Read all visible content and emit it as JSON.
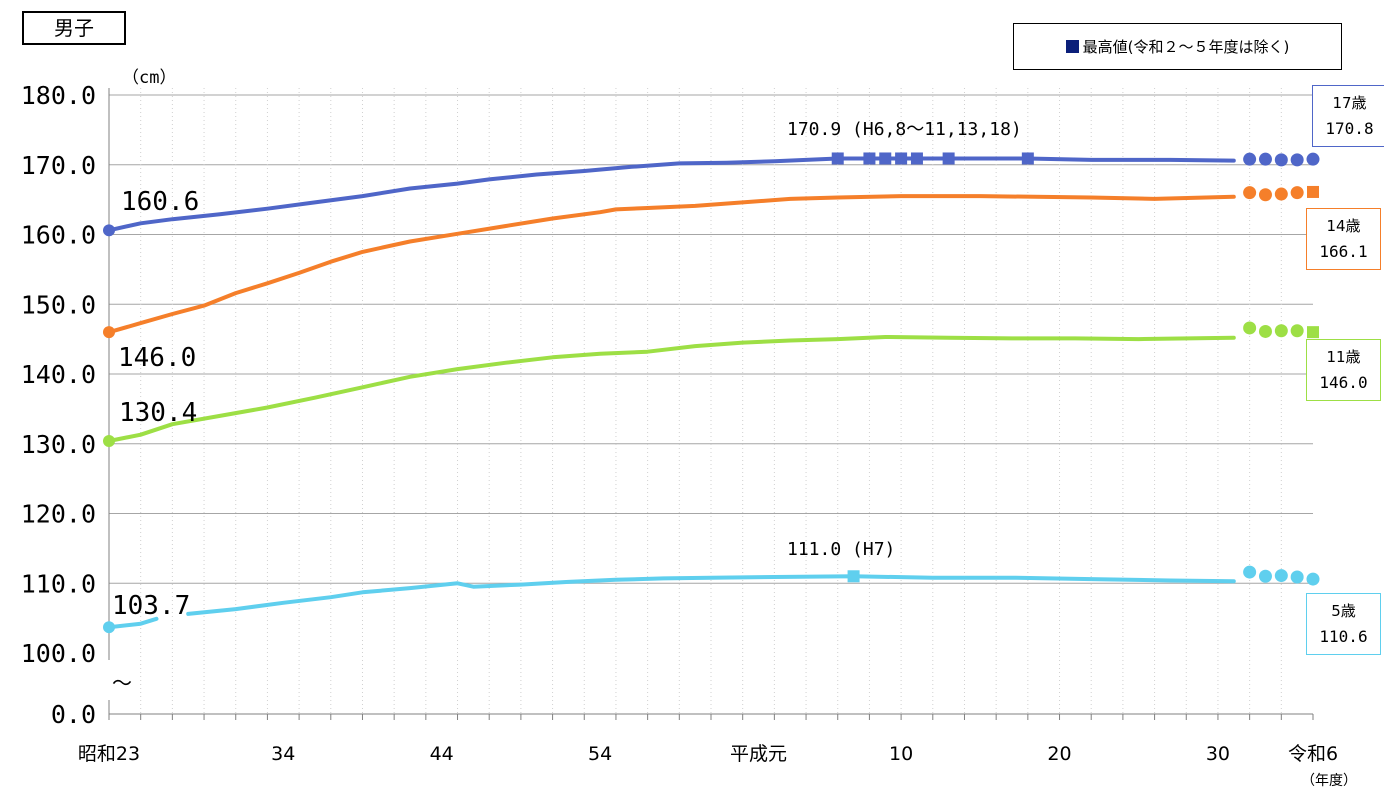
{
  "title": "男子",
  "legend": {
    "label": "最高値(令和２～５年度は除く)",
    "color": "#0b1f7a"
  },
  "y_unit": "（cm）",
  "x_unit": "（年度）",
  "chart_data": {
    "type": "line",
    "title": "男子",
    "xlabel": "",
    "ylabel": "（cm）",
    "x_tick_labels": [
      "昭和23",
      "34",
      "44",
      "54",
      "平成元",
      "10",
      "20",
      "30",
      "令和6"
    ],
    "y_tick_labels": [
      "0.0",
      "100.0",
      "110.0",
      "120.0",
      "130.0",
      "140.0",
      "150.0",
      "160.0",
      "170.0",
      "180.0"
    ],
    "ylim": [
      100,
      180
    ],
    "y_break": "～",
    "grid": true,
    "series": [
      {
        "name": "17歳",
        "color": "#4f66c8",
        "box_label": "17歳",
        "box_value": "170.8",
        "start_label": "160.6",
        "max_label": "170.9 (H6,8～11,13,18)",
        "values": [
          [
            1948,
            160.6
          ],
          [
            1950,
            161.6
          ],
          [
            1952,
            162.2
          ],
          [
            1955,
            162.9
          ],
          [
            1958,
            163.7
          ],
          [
            1961,
            164.6
          ],
          [
            1964,
            165.5
          ],
          [
            1967,
            166.6
          ],
          [
            1970,
            167.3
          ],
          [
            1972,
            167.9
          ],
          [
            1975,
            168.6
          ],
          [
            1978,
            169.1
          ],
          [
            1981,
            169.7
          ],
          [
            1984,
            170.2
          ],
          [
            1987,
            170.3
          ],
          [
            1990,
            170.5
          ],
          [
            1994,
            170.9
          ],
          [
            1996,
            170.9
          ],
          [
            1999,
            170.9
          ],
          [
            2001,
            170.9
          ],
          [
            2006,
            170.9
          ],
          [
            2010,
            170.7
          ],
          [
            2015,
            170.7
          ],
          [
            2019,
            170.6
          ]
        ],
        "recent": [
          [
            2020,
            170.8
          ],
          [
            2021,
            170.8
          ],
          [
            2022,
            170.7
          ],
          [
            2023,
            170.7
          ],
          [
            2024,
            170.8
          ]
        ],
        "max_years": [
          1994,
          1996,
          1997,
          1998,
          1999,
          2001,
          2006
        ]
      },
      {
        "name": "14歳",
        "color": "#f57f2a",
        "box_label": "14歳",
        "box_value": "166.1",
        "start_label": "146.0",
        "max_label": "",
        "values": [
          [
            1948,
            146.0
          ],
          [
            1950,
            147.3
          ],
          [
            1952,
            148.6
          ],
          [
            1954,
            149.8
          ],
          [
            1956,
            151.6
          ],
          [
            1958,
            153.0
          ],
          [
            1960,
            154.5
          ],
          [
            1962,
            156.1
          ],
          [
            1964,
            157.5
          ],
          [
            1967,
            159.0
          ],
          [
            1970,
            160.1
          ],
          [
            1973,
            161.2
          ],
          [
            1976,
            162.3
          ],
          [
            1979,
            163.2
          ],
          [
            1980,
            163.6
          ],
          [
            1982,
            163.8
          ],
          [
            1985,
            164.1
          ],
          [
            1988,
            164.6
          ],
          [
            1991,
            165.1
          ],
          [
            1994,
            165.3
          ],
          [
            1998,
            165.5
          ],
          [
            2003,
            165.5
          ],
          [
            2010,
            165.3
          ],
          [
            2014,
            165.1
          ],
          [
            2019,
            165.4
          ]
        ],
        "recent": [
          [
            2020,
            166.0
          ],
          [
            2021,
            165.7
          ],
          [
            2022,
            165.8
          ],
          [
            2023,
            166.0
          ],
          [
            2024,
            166.1
          ]
        ],
        "max_years": [
          2024
        ]
      },
      {
        "name": "11歳",
        "color": "#9ddf45",
        "box_label": "11歳",
        "box_value": "146.0",
        "start_label": "130.4",
        "max_label": "",
        "values": [
          [
            1948,
            130.4
          ],
          [
            1950,
            131.3
          ],
          [
            1952,
            132.8
          ],
          [
            1955,
            134.0
          ],
          [
            1958,
            135.2
          ],
          [
            1961,
            136.6
          ],
          [
            1964,
            138.1
          ],
          [
            1967,
            139.6
          ],
          [
            1970,
            140.7
          ],
          [
            1973,
            141.6
          ],
          [
            1976,
            142.4
          ],
          [
            1979,
            142.9
          ],
          [
            1982,
            143.2
          ],
          [
            1985,
            144.0
          ],
          [
            1988,
            144.5
          ],
          [
            1991,
            144.8
          ],
          [
            1994,
            145.0
          ],
          [
            1997,
            145.3
          ],
          [
            2001,
            145.2
          ],
          [
            2005,
            145.1
          ],
          [
            2009,
            145.1
          ],
          [
            2013,
            145.0
          ],
          [
            2019,
            145.2
          ]
        ],
        "recent": [
          [
            2020,
            146.6
          ],
          [
            2021,
            146.1
          ],
          [
            2022,
            146.2
          ],
          [
            2023,
            146.2
          ],
          [
            2024,
            146.0
          ]
        ],
        "max_years": [
          2024
        ]
      },
      {
        "name": "5歳",
        "color": "#5fcfee",
        "box_label": "5歳",
        "box_value": "110.6",
        "start_label": "103.7",
        "max_label": "111.0 (H7)",
        "values": [
          [
            1948,
            103.7
          ],
          [
            1950,
            104.2
          ],
          [
            1951,
            104.9
          ],
          null,
          [
            1953,
            105.6
          ],
          [
            1956,
            106.3
          ],
          [
            1959,
            107.2
          ],
          [
            1962,
            108.0
          ],
          [
            1964,
            108.7
          ],
          [
            1967,
            109.3
          ],
          [
            1970,
            110.0
          ],
          [
            1971,
            109.5
          ],
          [
            1974,
            109.8
          ],
          [
            1977,
            110.2
          ],
          [
            1980,
            110.5
          ],
          [
            1983,
            110.7
          ],
          [
            1986,
            110.8
          ],
          [
            1990,
            110.9
          ],
          [
            1995,
            111.0
          ],
          [
            2000,
            110.8
          ],
          [
            2005,
            110.8
          ],
          [
            2010,
            110.6
          ],
          [
            2015,
            110.4
          ],
          [
            2019,
            110.3
          ]
        ],
        "recent": [
          [
            2020,
            111.6
          ],
          [
            2021,
            111.0
          ],
          [
            2022,
            111.1
          ],
          [
            2023,
            110.9
          ],
          [
            2024,
            110.6
          ]
        ],
        "max_years": [
          1995
        ]
      }
    ]
  }
}
